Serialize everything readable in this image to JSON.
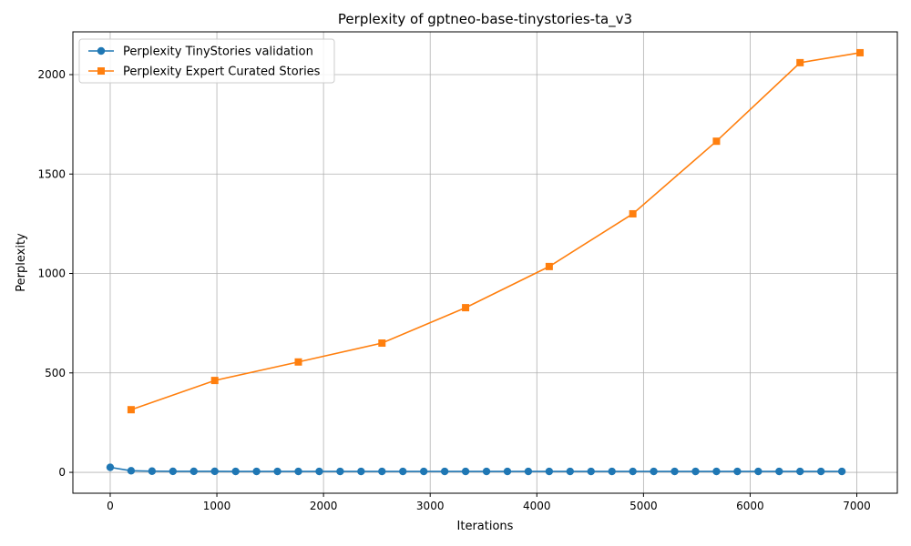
{
  "chart_data": {
    "type": "line",
    "title": "Perplexity of gptneo-base-tinystories-ta_v3",
    "xlabel": "Iterations",
    "ylabel": "Perplexity",
    "xlim": [
      -350,
      7380
    ],
    "ylim": [
      -105,
      2215
    ],
    "xticks": [
      0,
      1000,
      2000,
      3000,
      4000,
      5000,
      6000,
      7000
    ],
    "yticks": [
      0,
      500,
      1000,
      1500,
      2000
    ],
    "grid": true,
    "legend_position": "top-left",
    "series": [
      {
        "name": "Perplexity TinyStories validation",
        "color": "#1f77b4",
        "marker": "circle",
        "x": [
          0,
          196,
          392,
          588,
          784,
          980,
          1176,
          1372,
          1568,
          1764,
          1960,
          2156,
          2352,
          2548,
          2744,
          2940,
          3136,
          3332,
          3528,
          3724,
          3920,
          4116,
          4312,
          4508,
          4704,
          4900,
          5096,
          5292,
          5488,
          5684,
          5880,
          6076,
          6272,
          6468,
          6664,
          6860
        ],
        "y": [
          25,
          8,
          6,
          5,
          5,
          5,
          4.5,
          4.5,
          4.5,
          4.5,
          4.5,
          4.5,
          4.5,
          4.5,
          4.5,
          4.5,
          4.5,
          4.5,
          4.5,
          4.5,
          4.5,
          4.5,
          4.5,
          4.5,
          4.5,
          4.5,
          4.5,
          4.5,
          4.5,
          4.5,
          4.5,
          4.5,
          4.5,
          4.5,
          4.5,
          4.5
        ]
      },
      {
        "name": "Perplexity Expert Curated Stories",
        "color": "#ff7f0e",
        "marker": "square",
        "x": [
          196,
          980,
          1764,
          2548,
          3332,
          4116,
          4900,
          5684,
          6468,
          7030
        ],
        "y": [
          315,
          462,
          555,
          650,
          828,
          1035,
          1300,
          1665,
          2060,
          2110
        ]
      }
    ]
  }
}
